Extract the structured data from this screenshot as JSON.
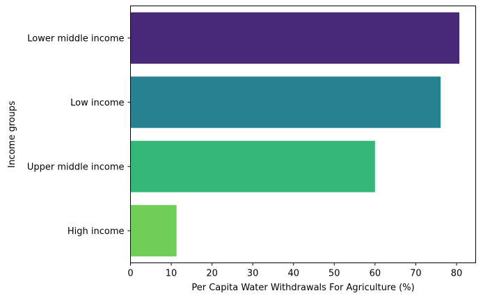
{
  "chart_data": {
    "type": "bar",
    "orientation": "horizontal",
    "categories": [
      "Lower middle income",
      "Low income",
      "Upper middle income",
      "High income"
    ],
    "values": [
      80.7,
      76.1,
      60.0,
      11.3
    ],
    "colors": [
      "#482878",
      "#26828e",
      "#35b779",
      "#6ece58"
    ],
    "title": "",
    "xlabel": "Per Capita Water Withdrawals For Agriculture (%)",
    "ylabel": "Income groups",
    "xlim": [
      0,
      84.7
    ],
    "xticks": [
      "0",
      "10",
      "20",
      "30",
      "40",
      "50",
      "60",
      "70",
      "80"
    ],
    "grid": false,
    "legend": "none"
  }
}
